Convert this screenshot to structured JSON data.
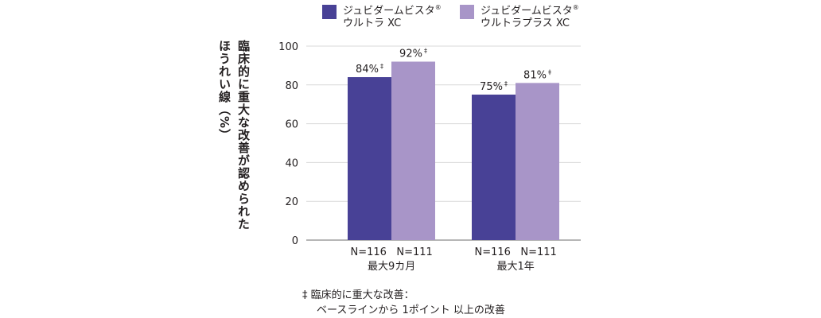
{
  "chart_data": {
    "type": "bar",
    "ylabel": "臨床的に重大な改善が認められた ほうれい線（%）",
    "ylim": [
      0,
      100
    ],
    "yticks": [
      0,
      20,
      40,
      60,
      80,
      100
    ],
    "grid": true,
    "legend_position": "top",
    "categories": [
      {
        "n_labels": [
          "N=116",
          "N=111"
        ],
        "label": "最大9カ月"
      },
      {
        "n_labels": [
          "N=116",
          "N=111"
        ],
        "label": "最大1年"
      }
    ],
    "series": [
      {
        "name": "ジュビダームビスタ® ウルトラ XC",
        "name_line1": "ジュビダームビスタ",
        "name_reg": "®",
        "name_line2": "ウルトラ XC",
        "color": "#484196",
        "values": [
          84,
          75
        ],
        "data_labels": [
          "84%",
          "75%"
        ]
      },
      {
        "name": "ジュビダームビスタ® ウルトラプラス XC",
        "name_line1": "ジュビダームビスタ",
        "name_reg": "®",
        "name_line2": "ウルトラプラス XC",
        "color": "#a895c8",
        "values": [
          92,
          81
        ],
        "data_labels": [
          "92%",
          "81%"
        ]
      }
    ],
    "marker": "‡"
  },
  "footnote": {
    "line1": "‡ 臨床的に重大な改善：",
    "line2": "ベースラインから 1ポイント 以上の改善"
  }
}
